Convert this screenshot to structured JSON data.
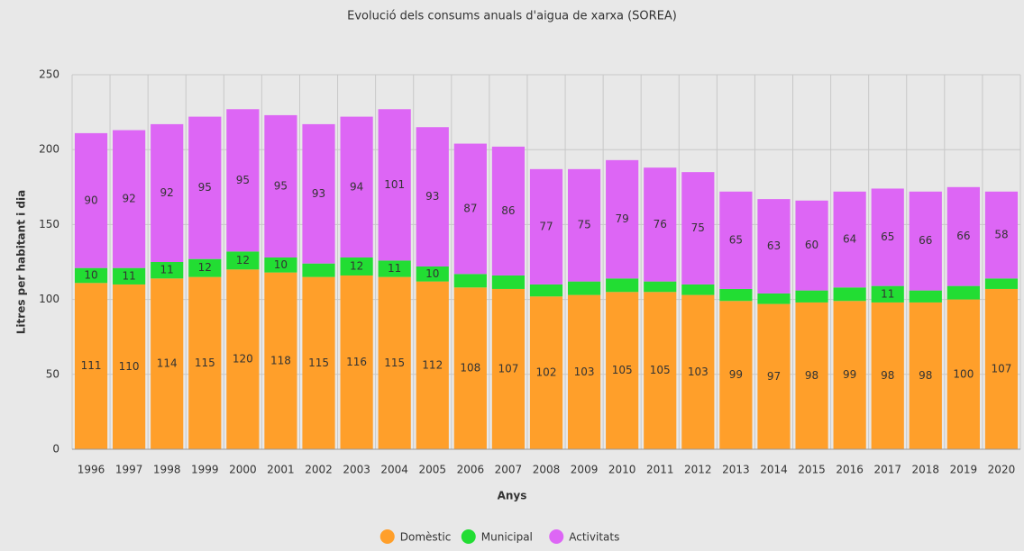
{
  "chart_data": {
    "type": "stacked-bar",
    "title": "Evolució dels consums anuals d'aigua de xarxa (SOREA)",
    "x_label": "Anys",
    "y_label": "Litres per habitant i dia",
    "categories": [
      "1996",
      "1997",
      "1998",
      "1999",
      "2000",
      "2001",
      "2002",
      "2003",
      "2004",
      "2005",
      "2006",
      "2007",
      "2008",
      "2009",
      "2010",
      "2011",
      "2012",
      "2013",
      "2014",
      "2015",
      "2016",
      "2017",
      "2018",
      "2019",
      "2020"
    ],
    "series": [
      {
        "name": "Domèstic",
        "color": "#ff9f2a",
        "values": [
          111,
          110,
          114,
          115,
          120,
          118,
          115,
          116,
          115,
          112,
          108,
          107,
          102,
          103,
          105,
          105,
          103,
          99,
          97,
          98,
          99,
          98,
          98,
          100,
          107
        ]
      },
      {
        "name": "Municipal",
        "color": "#22dd33",
        "values": [
          10,
          11,
          11,
          12,
          12,
          10,
          9,
          12,
          11,
          10,
          9,
          9,
          8,
          9,
          9,
          7,
          7,
          8,
          7,
          8,
          9,
          11,
          8,
          9,
          7
        ],
        "value_labels": [
          "10",
          "11",
          "11",
          "12",
          "12",
          "10",
          null,
          "12",
          "11",
          "10",
          null,
          null,
          null,
          null,
          null,
          null,
          null,
          null,
          null,
          null,
          null,
          "11",
          null,
          null,
          null
        ]
      },
      {
        "name": "Activitats",
        "color": "#dd66f5",
        "values": [
          90,
          92,
          92,
          95,
          95,
          95,
          93,
          94,
          101,
          93,
          87,
          86,
          77,
          75,
          79,
          76,
          75,
          65,
          63,
          60,
          64,
          65,
          66,
          66,
          58
        ]
      }
    ],
    "ylim": [
      0,
      250
    ],
    "yticks": [
      0,
      50,
      100,
      150,
      200,
      250
    ],
    "grid": true,
    "legend": "bottom"
  }
}
